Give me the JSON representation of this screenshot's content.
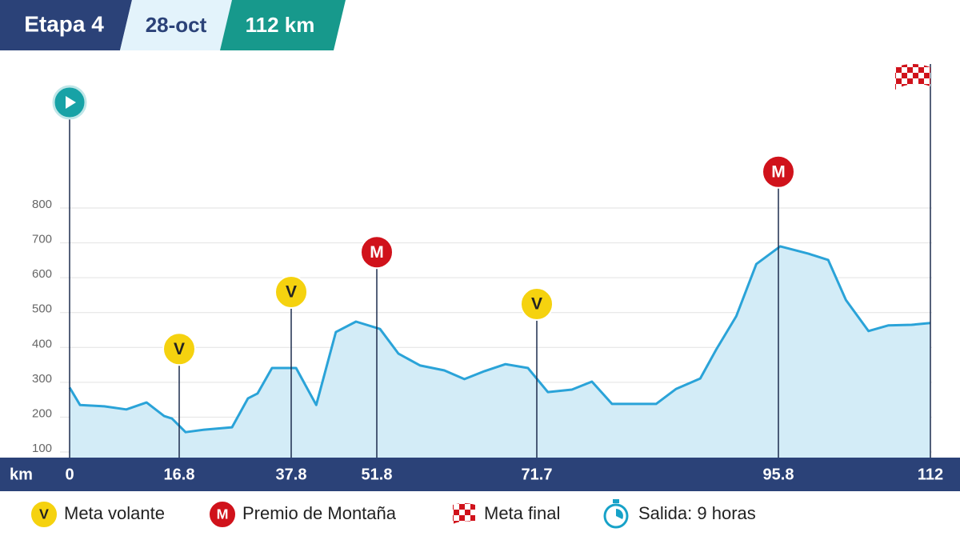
{
  "header": {
    "stage": "Etapa 4",
    "date": "28-oct",
    "distance": "112 km"
  },
  "chart_data": {
    "type": "area",
    "xlabel": "km",
    "color": "#2aa3d8",
    "fill": "#d3ecf7",
    "x": [
      0,
      1.6,
      5.3,
      8.7,
      11.8,
      14.5,
      15.7,
      18.0,
      21.5,
      26.7,
      29.7,
      31.5,
      34.2,
      38.6,
      41.9,
      45.1,
      48.4,
      52.2,
      54.5,
      57.2,
      60.2,
      62.7,
      65.2,
      67.8,
      70.6,
      72.8,
      75.2,
      77.2,
      79.2,
      83.6,
      85.6,
      88.0,
      89.6,
      91.6,
      93.6,
      96.0,
      99.0,
      101.1,
      103.0,
      105.4,
      107.5,
      110.0,
      112
    ],
    "values": [
      285,
      235,
      231,
      222,
      242,
      203,
      196,
      157,
      164,
      171,
      254,
      268,
      341,
      341,
      235,
      444,
      474,
      453,
      382,
      348,
      334,
      309,
      332,
      352,
      341,
      272,
      279,
      302,
      238,
      238,
      281,
      311,
      394,
      490,
      639,
      690,
      669,
      651,
      536,
      447,
      463,
      465,
      470
    ],
    "xlim": [
      0,
      112
    ],
    "xticks": [
      0,
      16.8,
      37.8,
      51.8,
      71.7,
      95.8,
      112
    ],
    "ylim": [
      100,
      800
    ],
    "yticks": [
      100,
      200,
      300,
      400,
      500,
      600,
      700,
      800
    ],
    "grid": true,
    "markers": [
      {
        "x": 0,
        "kind": "start"
      },
      {
        "x": 16.8,
        "kind": "V"
      },
      {
        "x": 37.8,
        "kind": "V"
      },
      {
        "x": 51.8,
        "kind": "M"
      },
      {
        "x": 71.7,
        "kind": "V"
      },
      {
        "x": 95.8,
        "kind": "M"
      },
      {
        "x": 112,
        "kind": "finish"
      }
    ]
  },
  "legend": [
    {
      "symbol": "V",
      "label": "Meta volante"
    },
    {
      "symbol": "M",
      "label": "Premio de Montaña"
    },
    {
      "symbol": "flag",
      "label": "Meta final"
    },
    {
      "symbol": "clock",
      "label": "Salida: 9 horas"
    }
  ]
}
